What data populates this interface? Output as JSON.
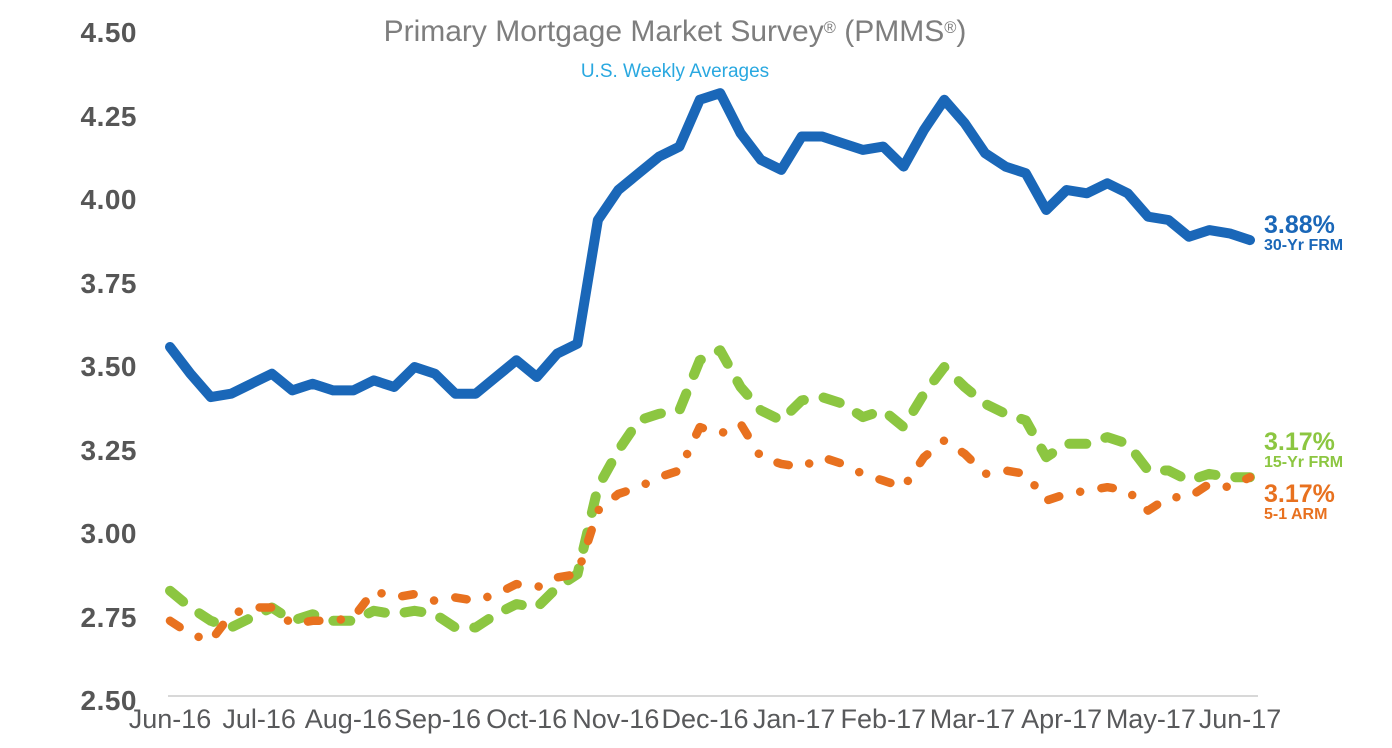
{
  "header": {
    "title_pre": "Primary Mortgage Market Survey",
    "title_reg1": "®",
    "title_mid": " (PMMS",
    "title_reg2": "®",
    "title_post": ")",
    "subtitle": "U.S. Weekly Averages"
  },
  "ui_colors": {
    "title_gray": "#7E7E7E",
    "subtitle_blue": "#29A8E0",
    "tick_label_gray": "#58595B",
    "y_label_gray": "#565656",
    "axis_line_gray": "#D8D8D8",
    "series_blue": "#1A67B8",
    "series_green": "#8CC641",
    "series_orange": "#E8711F"
  },
  "chart_data": {
    "type": "line",
    "title": "Primary Mortgage Market Survey® (PMMS®)",
    "subtitle": "U.S. Weekly Averages",
    "frequency": "weekly",
    "grid": false,
    "legend_position": "right-end-labels",
    "ylim": [
      2.5,
      4.5
    ],
    "y_tick_labels": [
      "4.50",
      "4.25",
      "4.00",
      "3.75",
      "3.50",
      "3.25",
      "3.00",
      "2.75",
      "2.50"
    ],
    "x_tick_labels": [
      "Jun-16",
      "Jul-16",
      "Aug-16",
      "Sep-16",
      "Oct-16",
      "Nov-16",
      "Dec-16",
      "Jan-17",
      "Feb-17",
      "Mar-17",
      "Apr-17",
      "May-17",
      "Jun-17"
    ],
    "series": [
      {
        "name": "30-Yr FRM",
        "end_label": "3.88%",
        "color": "#1A67B8",
        "style": "solid",
        "values": [
          3.56,
          3.48,
          3.41,
          3.42,
          3.45,
          3.48,
          3.43,
          3.45,
          3.43,
          3.43,
          3.46,
          3.44,
          3.5,
          3.48,
          3.42,
          3.42,
          3.47,
          3.52,
          3.47,
          3.54,
          3.57,
          3.94,
          4.03,
          4.08,
          4.13,
          4.16,
          4.3,
          4.32,
          4.2,
          4.12,
          4.09,
          4.19,
          4.19,
          4.17,
          4.15,
          4.16,
          4.1,
          4.21,
          4.3,
          4.23,
          4.14,
          4.1,
          4.08,
          3.97,
          4.03,
          4.02,
          4.05,
          4.02,
          3.95,
          3.94,
          3.89,
          3.91,
          3.9,
          3.88
        ]
      },
      {
        "name": "15-Yr FRM",
        "end_label": "3.17%",
        "color": "#8CC641",
        "style": "dashed",
        "values": [
          2.83,
          2.78,
          2.74,
          2.72,
          2.75,
          2.78,
          2.74,
          2.76,
          2.74,
          2.74,
          2.77,
          2.76,
          2.77,
          2.76,
          2.72,
          2.72,
          2.76,
          2.79,
          2.78,
          2.84,
          2.88,
          3.14,
          3.25,
          3.34,
          3.36,
          3.37,
          3.52,
          3.55,
          3.44,
          3.37,
          3.34,
          3.4,
          3.41,
          3.39,
          3.35,
          3.37,
          3.32,
          3.42,
          3.5,
          3.44,
          3.39,
          3.36,
          3.34,
          3.23,
          3.27,
          3.27,
          3.29,
          3.27,
          3.19,
          3.19,
          3.16,
          3.18,
          3.17,
          3.17
        ]
      },
      {
        "name": "5-1 ARM",
        "end_label": "3.17%",
        "color": "#E8711F",
        "style": "dash-dot",
        "values": [
          2.74,
          2.7,
          2.68,
          2.76,
          2.78,
          2.78,
          2.73,
          2.74,
          2.74,
          2.75,
          2.83,
          2.81,
          2.82,
          2.8,
          2.81,
          2.8,
          2.82,
          2.85,
          2.84,
          2.87,
          2.88,
          3.07,
          3.12,
          3.14,
          3.17,
          3.19,
          3.32,
          3.3,
          3.33,
          3.23,
          3.21,
          3.2,
          3.23,
          3.21,
          3.18,
          3.16,
          3.14,
          3.23,
          3.28,
          3.24,
          3.18,
          3.19,
          3.18,
          3.1,
          3.12,
          3.13,
          3.14,
          3.13,
          3.07,
          3.11,
          3.11,
          3.15,
          3.14,
          3.17
        ]
      }
    ]
  }
}
